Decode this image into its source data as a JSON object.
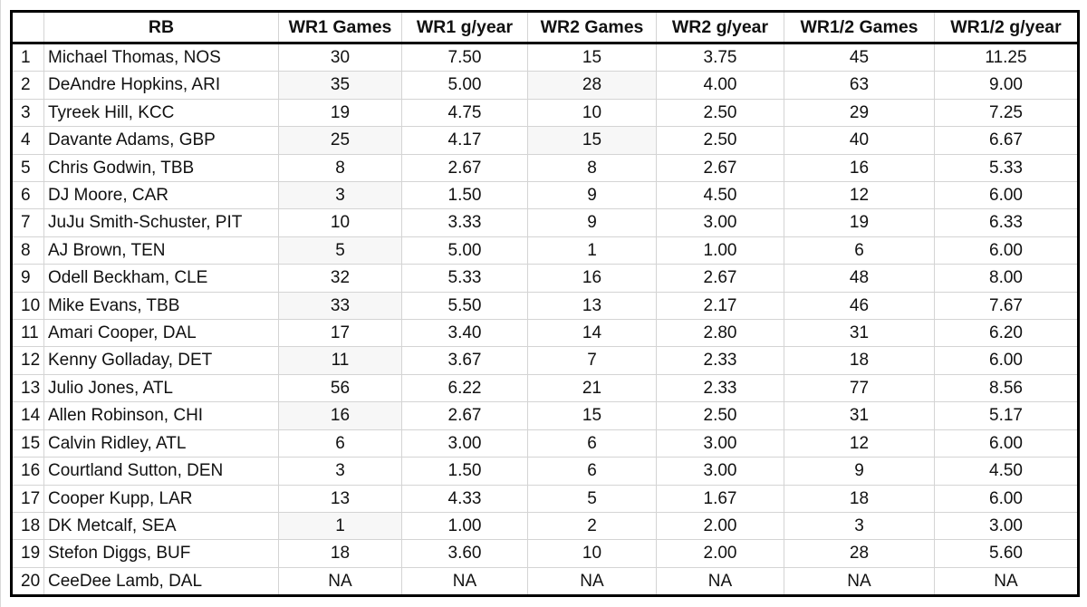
{
  "table": {
    "headers": [
      "",
      "RB",
      "WR1 Games",
      "WR1 g/year",
      "WR2 Games",
      "WR2 g/year",
      "WR1/2 Games",
      "WR1/2 g/year"
    ],
    "rows": [
      [
        "1",
        "Michael Thomas, NOS",
        "30",
        "7.50",
        "15",
        "3.75",
        "45",
        "11.25"
      ],
      [
        "2",
        "DeAndre Hopkins, ARI",
        "35",
        "5.00",
        "28",
        "4.00",
        "63",
        "9.00"
      ],
      [
        "3",
        "Tyreek Hill, KCC",
        "19",
        "4.75",
        "10",
        "2.50",
        "29",
        "7.25"
      ],
      [
        "4",
        "Davante Adams, GBP",
        "25",
        "4.17",
        "15",
        "2.50",
        "40",
        "6.67"
      ],
      [
        "5",
        "Chris Godwin, TBB",
        "8",
        "2.67",
        "8",
        "2.67",
        "16",
        "5.33"
      ],
      [
        "6",
        "DJ Moore, CAR",
        "3",
        "1.50",
        "9",
        "4.50",
        "12",
        "6.00"
      ],
      [
        "7",
        "JuJu Smith-Schuster, PIT",
        "10",
        "3.33",
        "9",
        "3.00",
        "19",
        "6.33"
      ],
      [
        "8",
        "AJ Brown, TEN",
        "5",
        "5.00",
        "1",
        "1.00",
        "6",
        "6.00"
      ],
      [
        "9",
        "Odell Beckham, CLE",
        "32",
        "5.33",
        "16",
        "2.67",
        "48",
        "8.00"
      ],
      [
        "10",
        "Mike Evans, TBB",
        "33",
        "5.50",
        "13",
        "2.17",
        "46",
        "7.67"
      ],
      [
        "11",
        "Amari Cooper, DAL",
        "17",
        "3.40",
        "14",
        "2.80",
        "31",
        "6.20"
      ],
      [
        "12",
        "Kenny Golladay, DET",
        "11",
        "3.67",
        "7",
        "2.33",
        "18",
        "6.00"
      ],
      [
        "13",
        "Julio Jones, ATL",
        "56",
        "6.22",
        "21",
        "2.33",
        "77",
        "8.56"
      ],
      [
        "14",
        "Allen Robinson, CHI",
        "16",
        "2.67",
        "15",
        "2.50",
        "31",
        "5.17"
      ],
      [
        "15",
        "Calvin Ridley, ATL",
        "6",
        "3.00",
        "6",
        "3.00",
        "12",
        "6.00"
      ],
      [
        "16",
        "Courtland Sutton, DEN",
        "3",
        "1.50",
        "6",
        "3.00",
        "9",
        "4.50"
      ],
      [
        "17",
        "Cooper Kupp, LAR",
        "13",
        "4.33",
        "5",
        "1.67",
        "18",
        "6.00"
      ],
      [
        "18",
        "DK Metcalf, SEA",
        "1",
        "1.00",
        "2",
        "2.00",
        "3",
        "3.00"
      ],
      [
        "19",
        "Stefon Diggs, BUF",
        "18",
        "3.60",
        "10",
        "2.00",
        "28",
        "5.60"
      ],
      [
        "20",
        "CeeDee Lamb, DAL",
        "NA",
        "NA",
        "NA",
        "NA",
        "NA",
        "NA"
      ]
    ]
  },
  "colors": {
    "border": "#000000",
    "gridline": "#d4d4d4",
    "shaded_cell": "#f7f7f7"
  }
}
